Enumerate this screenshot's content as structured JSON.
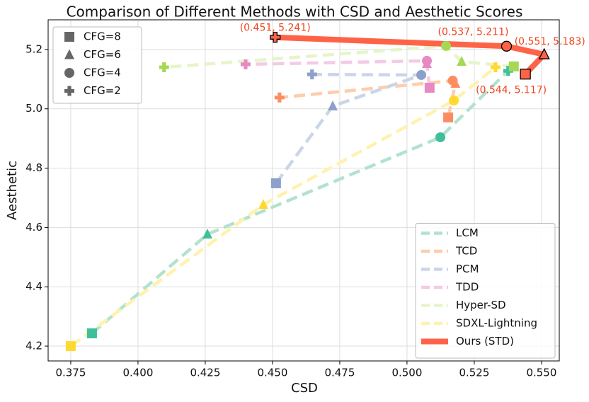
{
  "chart_data": {
    "type": "line",
    "title": "Comparison of Different Methods with CSD and Aesthetic Scores",
    "x_label": "CSD",
    "y_label": "Aesthetic",
    "xlim": [
      0.3666,
      0.5566
    ],
    "xticks": [
      0.375,
      {
        "value": 0.4,
        "label": "0.400"
      },
      0.425,
      {
        "value": 0.45,
        "label": "0.450"
      },
      0.475,
      {
        "value": 0.5,
        "label": "0.500"
      },
      0.525,
      {
        "value": 0.55,
        "label": "0.550"
      }
    ],
    "ylim": [
      4.15,
      5.3
    ],
    "yticks": [
      4.2,
      4.4,
      4.6,
      4.8,
      {
        "value": 5.0,
        "label": "5.0"
      },
      5.2
    ],
    "grid": true,
    "marker_legend": [
      "CFG=8",
      "CFG=6",
      "CFG=4",
      "CFG=2"
    ],
    "legend": "lower right",
    "series": [
      {
        "name": "LCM",
        "color": "#b3e2cd",
        "marker_color": "#3dbf9a",
        "linestyle": "dashed",
        "x": [
          0.3829,
          0.4258,
          0.5124,
          0.5376
        ],
        "values": [
          4.243,
          4.577,
          4.904,
          5.128
        ]
      },
      {
        "name": "TCD",
        "color": "#fdcdac",
        "marker_color": "#fc8d62",
        "linestyle": "dashed",
        "x": [
          0.5153,
          0.518,
          0.517,
          0.4526
        ],
        "values": [
          4.971,
          5.085,
          5.095,
          5.038
        ]
      },
      {
        "name": "PCM",
        "color": "#cbd5e8",
        "marker_color": "#8da0cb",
        "linestyle": "dashed",
        "x": [
          0.4513,
          0.4724,
          0.5053,
          0.4647
        ],
        "values": [
          4.749,
          5.009,
          5.114,
          5.116
        ]
      },
      {
        "name": "TDD",
        "color": "#f4cae4",
        "marker_color": "#e78ac3",
        "linestyle": "dashed",
        "x": [
          0.5084,
          0.5074,
          0.5074,
          0.44
        ],
        "values": [
          5.071,
          5.152,
          5.162,
          5.15
        ]
      },
      {
        "name": "Hyper-SD",
        "color": "#e6f5c9",
        "marker_color": "#a6d854",
        "linestyle": "dashed",
        "x": [
          0.5397,
          0.5203,
          0.5145,
          0.4097
        ],
        "values": [
          5.143,
          5.159,
          5.212,
          5.14
        ]
      },
      {
        "name": "SDXL-Lightning",
        "color": "#fff2ae",
        "marker_color": "#ffd92f",
        "linestyle": "dashed",
        "x": [
          0.375,
          0.4466,
          0.5174,
          0.5329
        ],
        "values": [
          4.2,
          4.677,
          5.028,
          5.14
        ]
      },
      {
        "name": "Ours (STD)",
        "color": "#ff6347",
        "marker_color": "#ff6347",
        "linestyle": "solid",
        "x": [
          0.544,
          0.551,
          0.537,
          0.451
        ],
        "values": [
          5.117,
          5.183,
          5.211,
          5.241
        ]
      }
    ],
    "annotations": [
      "(0.544, 5.117)",
      "(0.551, 5.183)",
      "(0.537, 5.211)",
      "(0.451, 5.241)"
    ]
  }
}
